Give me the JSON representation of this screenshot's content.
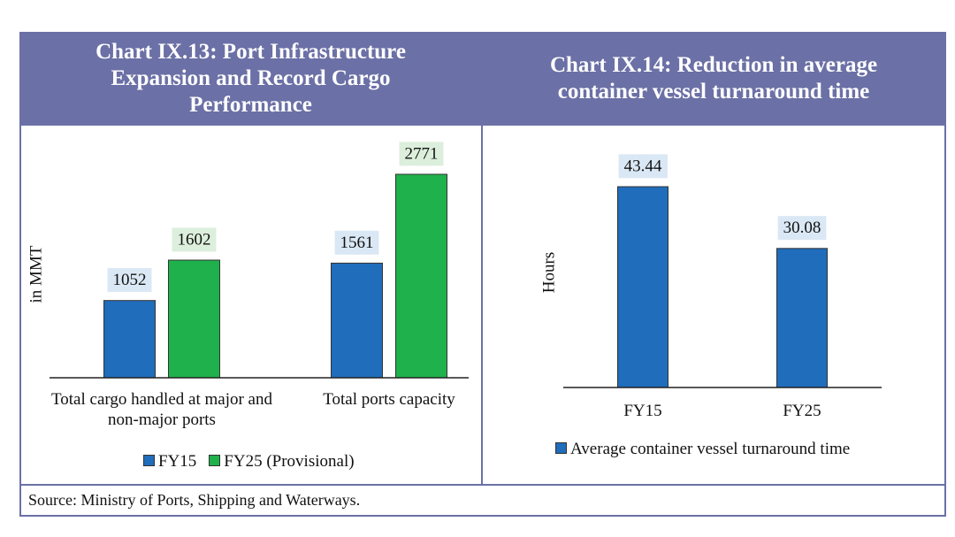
{
  "chart_data": [
    {
      "type": "bar",
      "title": "Chart IX.13: Port Infrastructure Expansion and Record Cargo Performance",
      "y_label": "in MMT",
      "categories": [
        "Total cargo handled at major and non-major ports",
        "Total ports capacity"
      ],
      "series": [
        {
          "name": "FY15",
          "color": "#1f6dbb",
          "label_background": "#dae8f5",
          "values": [
            1052,
            1561
          ]
        },
        {
          "name": "FY25 (Provisional)",
          "color": "#1fb14b",
          "label_background": "#dcefdc",
          "values": [
            1602,
            2771
          ]
        }
      ]
    },
    {
      "type": "bar",
      "title": "Chart IX.14: Reduction in average container vessel turnaround time",
      "y_label": "Hours",
      "categories": [
        "FY15",
        "FY25"
      ],
      "series": [
        {
          "name": "Average container vessel turnaround time",
          "color": "#1f6dbb",
          "label_background": "#dae8f5",
          "values": [
            43.44,
            30.08
          ]
        }
      ]
    }
  ],
  "source": "Source: Ministry of Ports, Shipping and Waterways."
}
